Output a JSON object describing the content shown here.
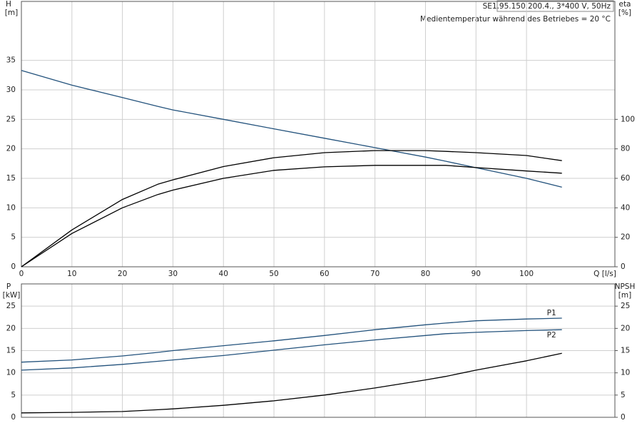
{
  "chart_data": [
    {
      "type": "line",
      "title": "SE1.95.150.200.4., 3*400 V, 50Hz",
      "subtitle": "Medientemperatur während des Betriebes = 20 °C",
      "ylabel": "H",
      "yunit": "[m]",
      "y2label": "eta",
      "y2unit": "[%]",
      "xlabel": "Q [l/s]",
      "x": [
        0,
        10,
        20,
        27,
        30,
        40,
        50,
        60,
        70,
        80,
        84,
        90,
        100,
        107
      ],
      "xlim": [
        0,
        117.5
      ],
      "xticks": [
        0,
        10,
        20,
        30,
        40,
        50,
        60,
        70,
        80,
        90,
        100
      ],
      "ylim": [
        0,
        45
      ],
      "yticks": [
        0,
        5,
        10,
        15,
        20,
        25,
        30,
        35
      ],
      "y2lim": [
        0,
        180
      ],
      "y2ticks": [
        0,
        20,
        40,
        60,
        80,
        100
      ],
      "grid": true,
      "series": [
        {
          "color": "#23527c",
          "values": [
            33.3,
            30.8,
            28.7,
            27.2,
            26.6,
            25.0,
            23.4,
            21.8,
            20.2,
            18.6,
            17.9,
            16.8,
            15.0,
            13.5
          ]
        },
        {
          "color": "#000000",
          "axis": "y2",
          "values": [
            0,
            25,
            45.7,
            56,
            59,
            68,
            74,
            77.4,
            78.8,
            78.8,
            78.3,
            77.4,
            75.5,
            72
          ]
        },
        {
          "color": "#000000",
          "axis": "y2",
          "values": [
            0,
            22.6,
            40,
            49,
            52,
            60,
            65.4,
            67.8,
            68.8,
            68.8,
            68.8,
            67.3,
            65,
            63.5
          ]
        }
      ]
    },
    {
      "type": "line",
      "ylabel": "P",
      "yunit": "[kW]",
      "y2label": "NPSH",
      "y2unit": "[m]",
      "x": [
        0,
        10,
        20,
        27,
        30,
        40,
        50,
        60,
        70,
        80,
        84,
        90,
        100,
        107
      ],
      "xlim": [
        0,
        117.5
      ],
      "ylim": [
        0,
        30
      ],
      "yticks": [
        0,
        5,
        10,
        15,
        20,
        25
      ],
      "y2lim": [
        0,
        30
      ],
      "y2ticks": [
        0,
        5,
        10,
        15,
        20,
        25
      ],
      "grid": true,
      "series": [
        {
          "name": "P1",
          "color": "#23527c",
          "values": [
            12.4,
            12.9,
            13.8,
            14.6,
            15.0,
            16.1,
            17.2,
            18.4,
            19.7,
            20.8,
            21.2,
            21.7,
            22.1,
            22.3
          ]
        },
        {
          "name": "P2",
          "color": "#23527c",
          "values": [
            10.6,
            11.1,
            11.9,
            12.6,
            12.9,
            13.9,
            15.1,
            16.3,
            17.4,
            18.4,
            18.8,
            19.1,
            19.5,
            19.7
          ]
        },
        {
          "color": "#000000",
          "axis": "y2",
          "values": [
            1.0,
            1.1,
            1.3,
            1.7,
            1.9,
            2.7,
            3.7,
            5.0,
            6.6,
            8.4,
            9.2,
            10.6,
            12.7,
            14.4
          ]
        }
      ]
    }
  ]
}
